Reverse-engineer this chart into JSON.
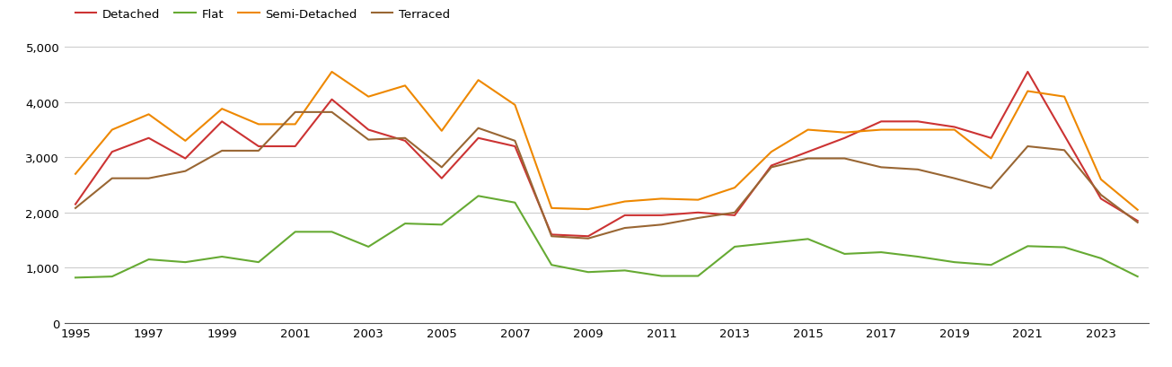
{
  "years": [
    1995,
    1996,
    1997,
    1998,
    1999,
    2000,
    2001,
    2002,
    2003,
    2004,
    2005,
    2006,
    2007,
    2008,
    2009,
    2010,
    2011,
    2012,
    2013,
    2014,
    2015,
    2016,
    2017,
    2018,
    2019,
    2020,
    2021,
    2022,
    2023,
    2024
  ],
  "detached": [
    2150,
    3100,
    3350,
    2980,
    3650,
    3200,
    3200,
    4050,
    3500,
    3300,
    2620,
    3350,
    3200,
    1600,
    1570,
    1950,
    1950,
    2000,
    1950,
    2850,
    3100,
    3350,
    3650,
    3650,
    3550,
    3350,
    4550,
    3400,
    2250,
    1850
  ],
  "flat": [
    820,
    840,
    1150,
    1100,
    1200,
    1100,
    1650,
    1650,
    1380,
    1800,
    1780,
    2300,
    2180,
    1050,
    920,
    950,
    850,
    850,
    1380,
    1450,
    1520,
    1250,
    1280,
    1200,
    1100,
    1050,
    1390,
    1370,
    1170,
    840
  ],
  "semi_detached": [
    2700,
    3500,
    3780,
    3300,
    3880,
    3600,
    3600,
    4550,
    4100,
    4300,
    3480,
    4400,
    3950,
    2080,
    2060,
    2200,
    2250,
    2230,
    2450,
    3100,
    3500,
    3450,
    3500,
    3500,
    3500,
    2980,
    4200,
    4100,
    2600,
    2050
  ],
  "terraced": [
    2080,
    2620,
    2620,
    2750,
    3120,
    3120,
    3820,
    3820,
    3320,
    3350,
    2820,
    3530,
    3300,
    1570,
    1530,
    1720,
    1780,
    1900,
    2000,
    2820,
    2980,
    2980,
    2820,
    2780,
    2620,
    2440,
    3200,
    3130,
    2320,
    1820
  ],
  "colors": {
    "detached": "#cc3333",
    "flat": "#66aa33",
    "semi_detached": "#ee8800",
    "terraced": "#996633"
  },
  "ylim": [
    0,
    5000
  ],
  "yticks": [
    0,
    1000,
    2000,
    3000,
    4000,
    5000
  ],
  "xtick_years": [
    1995,
    1997,
    1999,
    2001,
    2003,
    2005,
    2007,
    2009,
    2011,
    2013,
    2015,
    2017,
    2019,
    2021,
    2023
  ],
  "background_color": "#ffffff",
  "grid_color": "#cccccc",
  "line_width": 1.5,
  "tick_fontsize": 9.5,
  "legend_fontsize": 9.5
}
